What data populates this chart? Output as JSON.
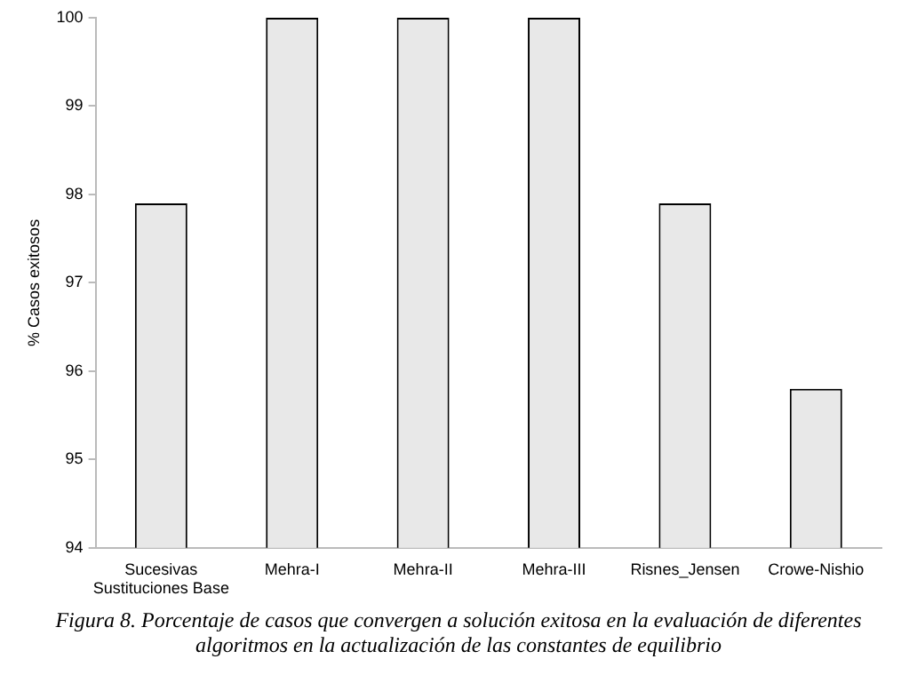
{
  "chart_data": {
    "type": "bar",
    "ylabel": "% Casos exitosos",
    "categories": [
      "Sucesivas Sustituciones Base",
      "Mehra-I",
      "Mehra-II",
      "Mehra-III",
      "Risnes_Jensen",
      "Crowe-Nishio"
    ],
    "values": [
      97.9,
      100,
      100,
      100,
      97.9,
      95.8
    ],
    "color": "#e8e8e8",
    "ylim": [
      94,
      100
    ],
    "yticks": [
      94,
      95,
      96,
      97,
      98,
      99,
      100
    ],
    "grid": false,
    "legend": false,
    "annotations": [
      "Figura 8. Porcentaje de casos que convergen a solución exitosa en la evaluación de diferentes algoritmos en la actualización de las constantes de equilibrio"
    ]
  }
}
